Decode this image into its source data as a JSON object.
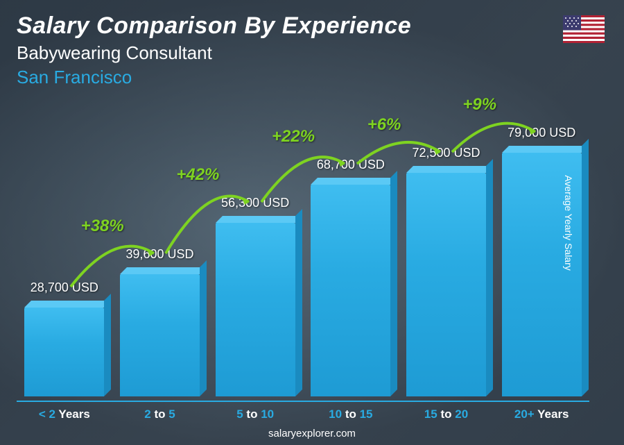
{
  "header": {
    "title": "Salary Comparison By Experience",
    "subtitle": "Babywearing Consultant",
    "location": "San Francisco"
  },
  "flag": {
    "country": "United States"
  },
  "chart": {
    "type": "bar",
    "y_axis_label": "Average Yearly Salary",
    "max_value": 79000,
    "bar_color_top": "#3fbdf0",
    "bar_color_mid": "#29abe2",
    "bar_color_bottom": "#1e9bd4",
    "accent_color": "#29abe2",
    "pct_color": "#7ed321",
    "text_color": "#ffffff",
    "bars": [
      {
        "label_pre": "< ",
        "label_num": "2",
        "label_post": " Years",
        "value": 28700,
        "value_text": "28,700 USD",
        "pct": null
      },
      {
        "label_pre": "",
        "label_num": "2",
        "label_mid": " to ",
        "label_num2": "5",
        "label_post": "",
        "value": 39600,
        "value_text": "39,600 USD",
        "pct": "+38%"
      },
      {
        "label_pre": "",
        "label_num": "5",
        "label_mid": " to ",
        "label_num2": "10",
        "label_post": "",
        "value": 56300,
        "value_text": "56,300 USD",
        "pct": "+42%"
      },
      {
        "label_pre": "",
        "label_num": "10",
        "label_mid": " to ",
        "label_num2": "15",
        "label_post": "",
        "value": 68700,
        "value_text": "68,700 USD",
        "pct": "+22%"
      },
      {
        "label_pre": "",
        "label_num": "15",
        "label_mid": " to ",
        "label_num2": "20",
        "label_post": "",
        "value": 72500,
        "value_text": "72,500 USD",
        "pct": "+6%"
      },
      {
        "label_pre": "",
        "label_num": "20+",
        "label_post": " Years",
        "value": 79000,
        "value_text": "79,000 USD",
        "pct": "+9%"
      }
    ]
  },
  "footer": {
    "text": "salaryexplorer.com"
  }
}
